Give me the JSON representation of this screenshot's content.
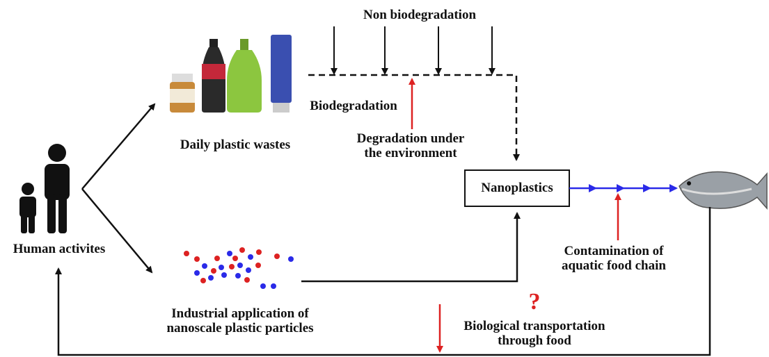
{
  "diagram": {
    "non_biodegradation": "Non biodegradation",
    "biodegradation": "Biodegradation",
    "degradation_env": [
      "Degradation under",
      "the environment"
    ],
    "daily_plastic": "Daily plastic wastes",
    "human": "Human activites",
    "nanoplastics": "Nanoplastics",
    "contamination": [
      "Contamination of",
      "aquatic food chain"
    ],
    "industrial": [
      "Industrial application of",
      "nanoscale plastic particles"
    ],
    "question": "?",
    "biological": [
      "Biological transportation",
      "through food"
    ]
  }
}
